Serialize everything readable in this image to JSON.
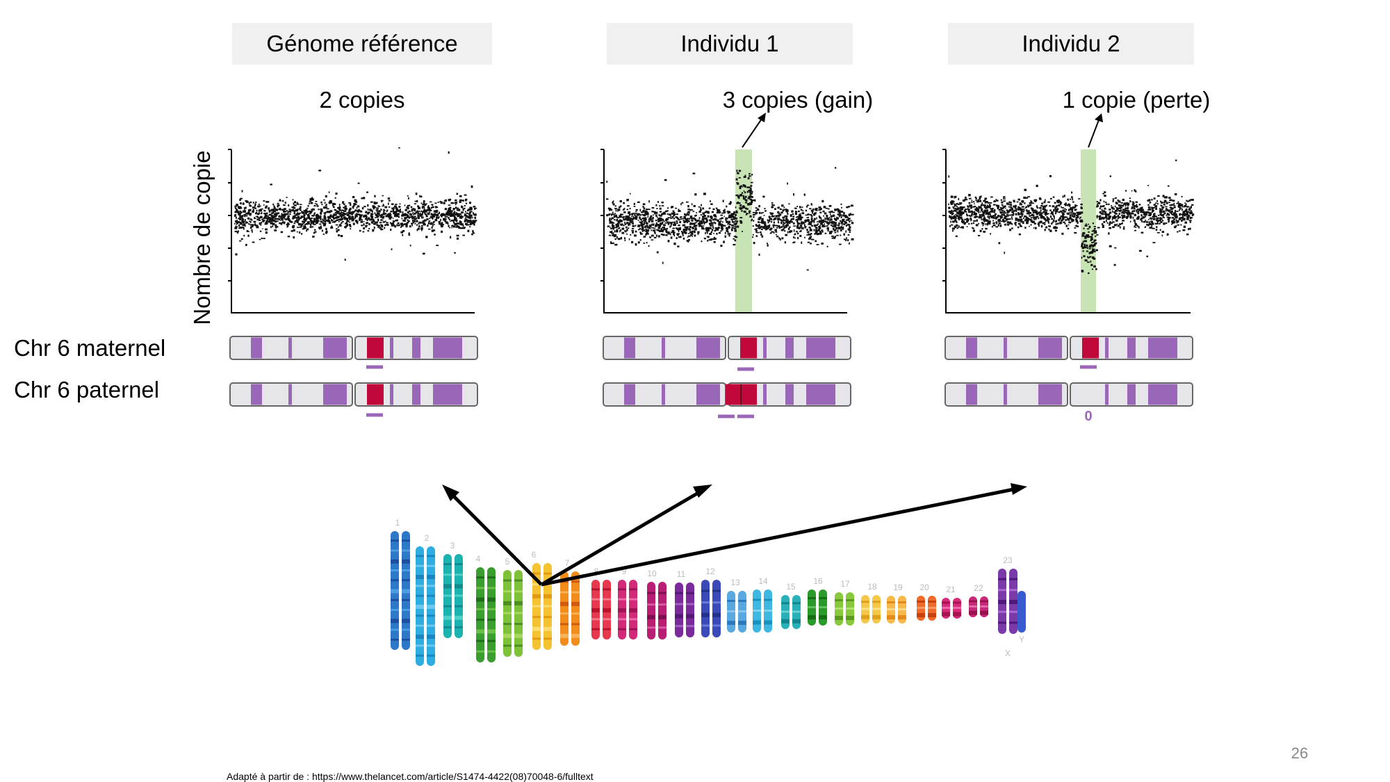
{
  "panels": [
    {
      "header": "Génome référence",
      "copy_label": "2 copies"
    },
    {
      "header": "Individu 1",
      "copy_label": "3 copies (gain)"
    },
    {
      "header": "Individu 2",
      "copy_label": "1 copie (perte)"
    }
  ],
  "y_axis_label": "Nombre de copie",
  "chromosome_labels": {
    "maternal": "Chr 6 maternel",
    "paternal": "Chr 6 paternel"
  },
  "loss_marker": "0",
  "karyotype": {
    "numbers": [
      "1",
      "2",
      "3",
      "4",
      "5",
      "6",
      "7",
      "8",
      "9",
      "10",
      "11",
      "12",
      "13",
      "14",
      "15",
      "16",
      "17",
      "18",
      "19",
      "20",
      "21",
      "22",
      "23"
    ],
    "sex_labels": [
      "X",
      "Y"
    ]
  },
  "slide_number": "26",
  "source": "Adapté à partir de : https://www.thelancet.com/article/S1474-4422(08)70048-6/fulltext",
  "colors": {
    "band_purple": "#9a66b8",
    "band_red": "#c0093a",
    "highlight_green": "#c9e4b4",
    "header_bg": "#f0f0f0"
  }
}
